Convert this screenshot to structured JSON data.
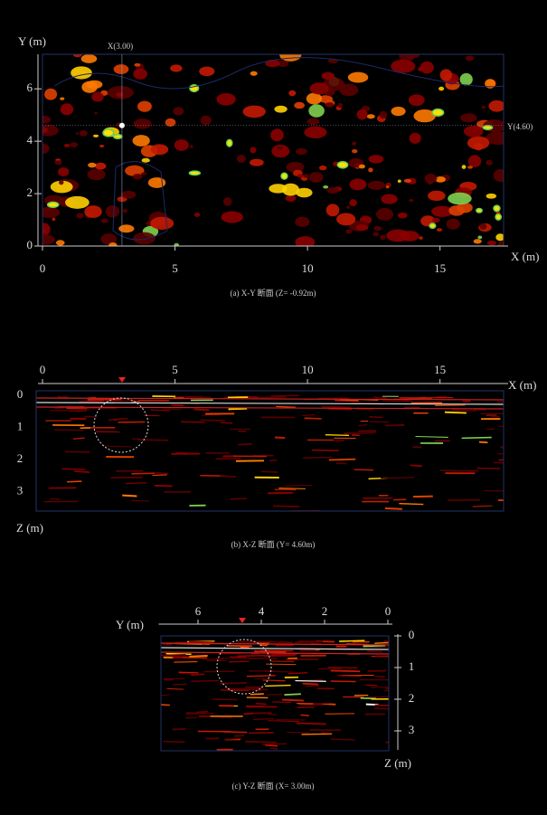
{
  "chart_data": [
    {
      "type": "heatmap",
      "title": "(a) X-Y 断面 (Z= -0.92m)",
      "xlabel": "X (m)",
      "ylabel": "Y (m)",
      "xlim": [
        0,
        17.4
      ],
      "ylim": [
        0,
        7.25
      ],
      "xticks": [
        0,
        5,
        10,
        15
      ],
      "yticks": [
        0,
        2,
        4,
        6
      ],
      "crosshair_x": {
        "value": 3,
        "label": "X(3.00)"
      },
      "crosshair_y": {
        "value": 4.6,
        "label": "Y(4.60)"
      }
    },
    {
      "type": "radargram",
      "title": "(b) X-Z 断面 (Y= 4.60m)",
      "xlabel": "X (m)",
      "ylabel": "Z (m)",
      "xlim": [
        0,
        17.4
      ],
      "ylim": [
        0,
        3.6
      ],
      "xticks": [
        0,
        5,
        10,
        15
      ],
      "yticks": [
        0,
        1,
        2,
        3
      ]
    },
    {
      "type": "radargram",
      "title": "(c) Y-Z 断面 (X= 3.00m)",
      "xlabel": "Y (m)",
      "ylabel": "Z (m)",
      "xlim": [
        7.1,
        0
      ],
      "ylim": [
        0,
        3.6
      ],
      "xticks": [
        6,
        4,
        2,
        0
      ],
      "yticks": [
        0,
        1,
        2,
        3
      ]
    }
  ]
}
